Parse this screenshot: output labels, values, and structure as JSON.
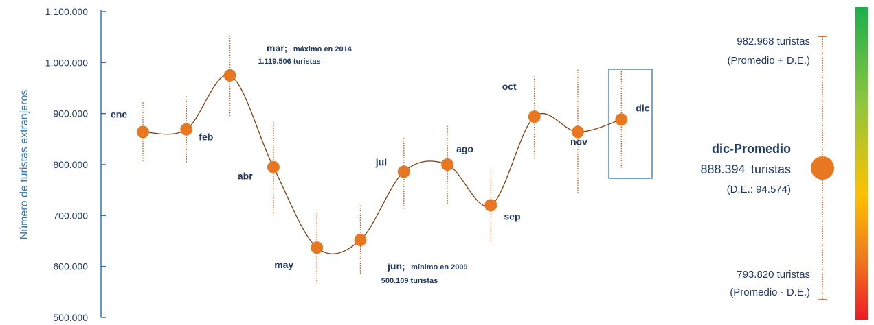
{
  "chart_data": {
    "type": "line",
    "ylabel": "Número de turistas extranjeros",
    "ylim": [
      500000,
      1100000
    ],
    "yticks": [
      "1.100.000",
      "1.000.000",
      "900.000",
      "800.000",
      "700.000",
      "600.000",
      "500.000"
    ],
    "categories": [
      "ene",
      "feb",
      "mar",
      "abr",
      "may",
      "jun",
      "jul",
      "ago",
      "sep",
      "oct",
      "nov",
      "dic"
    ],
    "values": [
      864000,
      869000,
      975000,
      795000,
      637000,
      652000,
      786000,
      800000,
      720000,
      894000,
      864000,
      888394
    ],
    "error_low": [
      804000,
      804000,
      893000,
      702000,
      568000,
      585000,
      713000,
      721000,
      645000,
      812000,
      741000,
      793820
    ],
    "error_high": [
      922000,
      934000,
      1053000,
      886000,
      705000,
      720000,
      852000,
      876000,
      793000,
      973000,
      986000,
      982968
    ],
    "annotations": {
      "mar_prefix": "mar;",
      "mar_note": "máximo en 2014",
      "mar_value": "1.119.506 turistas",
      "jun_prefix": "jun;",
      "jun_note": "mínimo en 2009",
      "jun_value": "500.109 turistas"
    },
    "highlight_month": "dic",
    "side_panel": {
      "upper_line1": "982.968 turistas",
      "upper_line2": "(Promedio + D.E.)",
      "title": "dic-Promedio",
      "mean_num": "888.394",
      "mean_unit": "turistas",
      "sd": "(D.E.: 94.574)",
      "lower_line1": "793.820 turistas",
      "lower_line2": "(Promedio - D.E.)"
    },
    "colors": {
      "marker": "#e87722",
      "curve": "#843c0c",
      "errorbar": "#c55a11",
      "axis": "#2e75b6",
      "text": "#1f3864",
      "highlight_box": "#2e75b6"
    }
  }
}
